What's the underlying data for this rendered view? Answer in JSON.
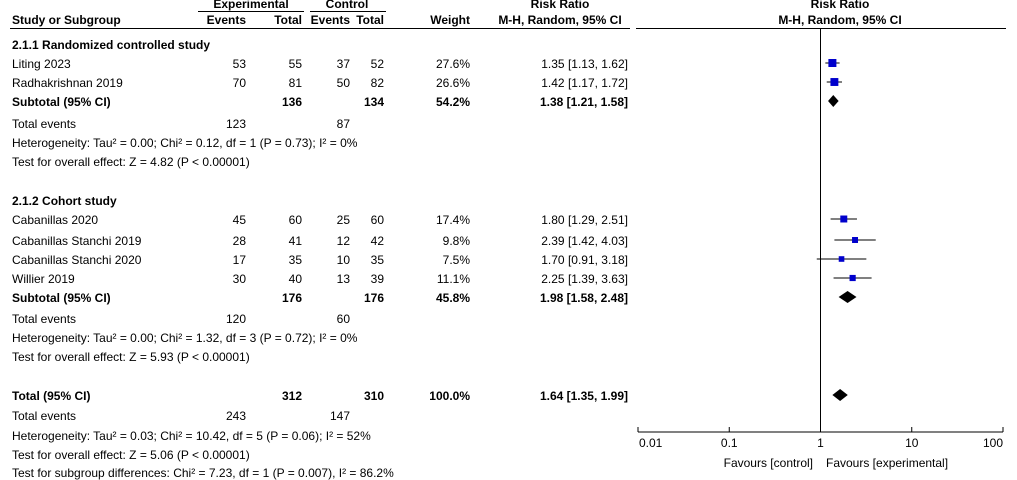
{
  "header": {
    "experimental": "Experimental",
    "control": "Control",
    "risk_ratio": "Risk Ratio",
    "study_or_subgroup": "Study or Subgroup",
    "events": "Events",
    "total": "Total",
    "weight": "Weight",
    "mh_random": "M-H, Random, 95% CI"
  },
  "group1": {
    "title": "2.1.1 Randomized controlled study",
    "studies": [
      {
        "name": "Liting 2023",
        "exp_events": "53",
        "exp_total": "55",
        "ctl_events": "37",
        "ctl_total": "52",
        "weight": "27.6%",
        "ci": "1.35 [1.13, 1.62]"
      },
      {
        "name": "Radhakrishnan 2019",
        "exp_events": "70",
        "exp_total": "81",
        "ctl_events": "50",
        "ctl_total": "82",
        "weight": "26.6%",
        "ci": "1.42 [1.17, 1.72]"
      }
    ],
    "subtotal": {
      "label": "Subtotal (95% CI)",
      "exp_total": "136",
      "ctl_total": "134",
      "weight": "54.2%",
      "ci": "1.38 [1.21, 1.58]"
    },
    "total_events": {
      "label": "Total events",
      "exp": "123",
      "ctl": "87"
    },
    "heterogeneity": "Heterogeneity: Tau² = 0.00; Chi² = 0.12, df = 1 (P = 0.73); I² = 0%",
    "overall_effect": "Test for overall effect: Z = 4.82 (P < 0.00001)"
  },
  "group2": {
    "title": "2.1.2 Cohort study",
    "studies": [
      {
        "name": "Cabanillas 2020",
        "exp_events": "45",
        "exp_total": "60",
        "ctl_events": "25",
        "ctl_total": "60",
        "weight": "17.4%",
        "ci": "1.80 [1.29, 2.51]"
      },
      {
        "name": "Cabanillas Stanchi 2019",
        "exp_events": "28",
        "exp_total": "41",
        "ctl_events": "12",
        "ctl_total": "42",
        "weight": "9.8%",
        "ci": "2.39 [1.42, 4.03]"
      },
      {
        "name": "Cabanillas Stanchi 2020",
        "exp_events": "17",
        "exp_total": "35",
        "ctl_events": "10",
        "ctl_total": "35",
        "weight": "7.5%",
        "ci": "1.70 [0.91, 3.18]"
      },
      {
        "name": "Willier 2019",
        "exp_events": "30",
        "exp_total": "40",
        "ctl_events": "13",
        "ctl_total": "39",
        "weight": "11.1%",
        "ci": "2.25 [1.39, 3.63]"
      }
    ],
    "subtotal": {
      "label": "Subtotal (95% CI)",
      "exp_total": "176",
      "ctl_total": "176",
      "weight": "45.8%",
      "ci": "1.98 [1.58, 2.48]"
    },
    "total_events": {
      "label": "Total events",
      "exp": "120",
      "ctl": "60"
    },
    "heterogeneity": "Heterogeneity: Tau² = 0.00; Chi² = 1.32, df = 3 (P = 0.72); I² = 0%",
    "overall_effect": "Test for overall effect: Z = 5.93 (P < 0.00001)"
  },
  "overall": {
    "label": "Total (95% CI)",
    "exp_total": "312",
    "ctl_total": "310",
    "weight": "100.0%",
    "ci": "1.64 [1.35, 1.99]",
    "total_events": {
      "label": "Total events",
      "exp": "243",
      "ctl": "147"
    },
    "heterogeneity": "Heterogeneity: Tau² = 0.03; Chi² = 10.42, df = 5 (P = 0.06); I² = 52%",
    "overall_effect": "Test for overall effect: Z = 5.06 (P < 0.00001)",
    "subgroup_diff": "Test for subgroup differences: Chi² = 7.23, df = 1 (P = 0.007), I² = 86.2%"
  },
  "axis": {
    "favours_left": "Favours [control]",
    "favours_right": "Favours [experimental]"
  },
  "colors": {
    "marker": "#0000cc",
    "diamond": "#000000",
    "text": "#000000"
  },
  "chart_data": {
    "type": "forest",
    "scale": "log",
    "xlim": [
      0.01,
      100
    ],
    "ticks": [
      0.01,
      0.1,
      1,
      10,
      100
    ],
    "tick_labels": [
      "0.01",
      "0.1",
      "1",
      "10",
      "100"
    ],
    "null_line": 1,
    "studies": [
      {
        "name": "Liting 2023",
        "rr": 1.35,
        "lo": 1.13,
        "hi": 1.62,
        "weight": 27.6
      },
      {
        "name": "Radhakrishnan 2019",
        "rr": 1.42,
        "lo": 1.17,
        "hi": 1.72,
        "weight": 26.6
      },
      {
        "name": "Cabanillas 2020",
        "rr": 1.8,
        "lo": 1.29,
        "hi": 2.51,
        "weight": 17.4
      },
      {
        "name": "Cabanillas Stanchi 2019",
        "rr": 2.39,
        "lo": 1.42,
        "hi": 4.03,
        "weight": 9.8
      },
      {
        "name": "Cabanillas Stanchi 2020",
        "rr": 1.7,
        "lo": 0.91,
        "hi": 3.18,
        "weight": 7.5
      },
      {
        "name": "Willier 2019",
        "rr": 2.25,
        "lo": 1.39,
        "hi": 3.63,
        "weight": 11.1
      }
    ],
    "summaries": [
      {
        "name": "Subtotal 2.1.1",
        "rr": 1.38,
        "lo": 1.21,
        "hi": 1.58
      },
      {
        "name": "Subtotal 2.1.2",
        "rr": 1.98,
        "lo": 1.58,
        "hi": 2.48
      },
      {
        "name": "Total",
        "rr": 1.64,
        "lo": 1.35,
        "hi": 1.99
      }
    ]
  }
}
